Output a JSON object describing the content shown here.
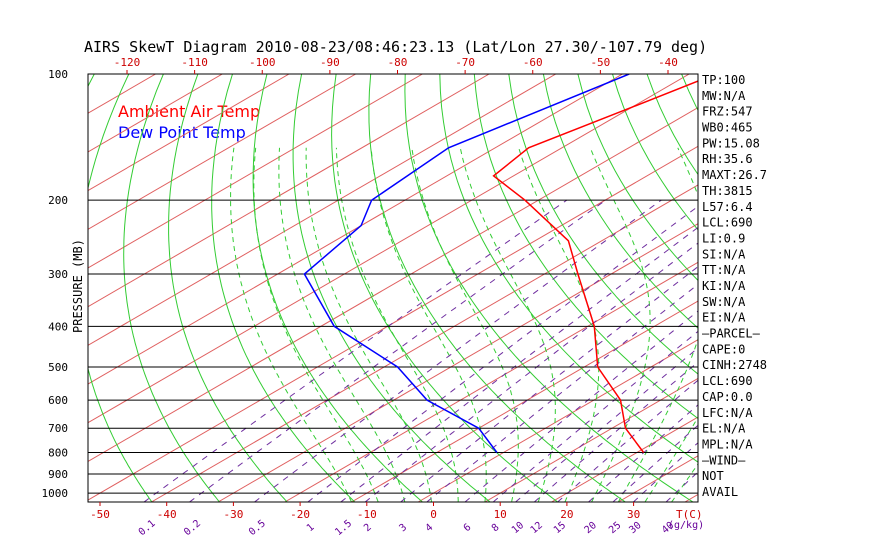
{
  "chart_data": {
    "type": "line",
    "title": "AIRS SkewT Diagram 2010-08-23/08:46:23.13 (Lat/Lon 27.30/-107.79 deg)",
    "ylabel": "PRESSURE (MB)",
    "xlabel": "T(C)",
    "mixing_label": "(g/kg)",
    "ylim": [
      1050,
      100
    ],
    "xlim": [
      -50,
      35
    ],
    "y_scale": "log",
    "pressure_ticks": [
      100,
      200,
      300,
      400,
      500,
      600,
      700,
      800,
      900,
      1000
    ],
    "bottom_temp_ticks": [
      -50,
      -40,
      -30,
      -20,
      -10,
      0,
      10,
      20,
      30
    ],
    "top_temp_ticks": [
      -120,
      -110,
      -100,
      -90,
      -80,
      -70,
      -60,
      -50,
      -40
    ],
    "mixing_ratio_ticks": [
      "0.1",
      "0.2",
      "0.5",
      "1",
      "1.5",
      "2",
      "3",
      "4",
      "6",
      "8",
      "10",
      "12",
      "15",
      "20",
      "25",
      "30",
      "40"
    ],
    "legend": [
      "Ambient Air Temp",
      "Dew Point Temp"
    ],
    "legend_colors": [
      "#ff0000",
      "#0000ff"
    ],
    "series": [
      {
        "name": "Ambient Air Temp",
        "color": "#ff0000",
        "points": [
          {
            "p": 100,
            "t": -66
          },
          {
            "p": 120,
            "t": -70
          },
          {
            "p": 150,
            "t": -75
          },
          {
            "p": 175,
            "t": -73
          },
          {
            "p": 200,
            "t": -62
          },
          {
            "p": 250,
            "t": -45
          },
          {
            "p": 300,
            "t": -35
          },
          {
            "p": 400,
            "t": -19
          },
          {
            "p": 500,
            "t": -8
          },
          {
            "p": 600,
            "t": 4
          },
          {
            "p": 700,
            "t": 12
          },
          {
            "p": 800,
            "t": 21
          }
        ]
      },
      {
        "name": "Dew Point Temp",
        "color": "#0000ff",
        "points": [
          {
            "p": 100,
            "t": -79
          },
          {
            "p": 150,
            "t": -87
          },
          {
            "p": 200,
            "t": -85
          },
          {
            "p": 230,
            "t": -80
          },
          {
            "p": 300,
            "t": -76
          },
          {
            "p": 400,
            "t": -58
          },
          {
            "p": 500,
            "t": -38
          },
          {
            "p": 600,
            "t": -25
          },
          {
            "p": 700,
            "t": -10
          },
          {
            "p": 800,
            "t": -1
          }
        ]
      }
    ],
    "stats": [
      "TP:100",
      "MW:N/A",
      "FRZ:547",
      "WB0:465",
      "PW:15.08",
      "RH:35.6",
      "MAXT:26.7",
      "TH:3815",
      "L57:6.4",
      "LCL:690",
      "LI:0.9",
      "SI:N/A",
      "TT:N/A",
      "KI:N/A",
      "SW:N/A",
      "EI:N/A",
      "—PARCEL—",
      "CAPE:0",
      "CINH:2748",
      "LCL:690",
      "CAP:0.0",
      "LFC:N/A",
      "EL:N/A",
      "MPL:N/A",
      "—WIND—",
      "NOT",
      "AVAIL"
    ],
    "grid": true,
    "colors": {
      "isotherm": "#e06060",
      "dry_adiabat": "#33cc33",
      "moist_adiabat": "#33cc33",
      "mixing_ratio": "#7030a0",
      "pressure_line": "#000000"
    }
  }
}
